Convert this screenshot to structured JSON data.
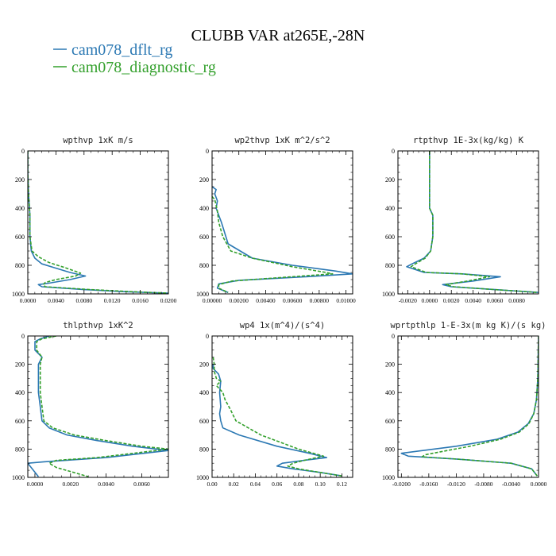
{
  "figure": {
    "title": "CLUBB VAR at265E,-28N",
    "legend": [
      {
        "label": "cam078_dflt_rg",
        "color": "#2b78b3",
        "dash": "solid"
      },
      {
        "label": "cam078_diagnostic_rg",
        "color": "#33a02c",
        "dash": "dashed"
      }
    ]
  },
  "chart_data": [
    {
      "type": "line",
      "title": "wpthvp  1xK m/s",
      "xlim": [
        0,
        0.02
      ],
      "ylim": [
        0,
        1000
      ],
      "y_inverted": true,
      "xticks": [
        0,
        0.004,
        0.008,
        0.012,
        0.016,
        0.02
      ],
      "xtick_labels": [
        "0.0000",
        "0.0040",
        "0.0080",
        "0.0120",
        "0.0160",
        "0.0200"
      ],
      "yticks": [
        0,
        200,
        400,
        600,
        800,
        1000
      ],
      "ytick_labels": [
        "0",
        "200",
        "400",
        "600",
        "800",
        "1000"
      ],
      "series": [
        {
          "name": "cam078_dflt_rg",
          "x": [
            0,
            0,
            0.0001,
            0.0003,
            0.0003,
            0.0005,
            0.001,
            0.002,
            0.004,
            0.006,
            0.0082,
            0.006,
            0.003,
            0.0015,
            0.002,
            0.008,
            0.014,
            0.02
          ],
          "y": [
            0,
            150,
            300,
            450,
            600,
            700,
            750,
            790,
            820,
            850,
            875,
            900,
            925,
            935,
            950,
            970,
            985,
            995
          ]
        },
        {
          "name": "cam078_diagnostic_rg",
          "x": [
            0,
            0,
            0.0001,
            0.0003,
            0.0003,
            0.0006,
            0.0015,
            0.003,
            0.0055,
            0.0075,
            0.0068,
            0.004,
            0.0025,
            0.0022,
            0.0025,
            0.009,
            0.015,
            0.02
          ],
          "y": [
            0,
            150,
            300,
            450,
            600,
            700,
            740,
            780,
            820,
            855,
            875,
            900,
            920,
            935,
            950,
            970,
            985,
            995
          ]
        }
      ]
    },
    {
      "type": "line",
      "title": "wp2thvp  1xK m^2/s^2",
      "xlim": [
        0,
        0.0105
      ],
      "ylim": [
        0,
        1000
      ],
      "y_inverted": true,
      "xticks": [
        0,
        0.002,
        0.004,
        0.006,
        0.008,
        0.01
      ],
      "xtick_labels": [
        "0.00000",
        "0.00200",
        "0.00400",
        "0.00600",
        "0.00800",
        "0.01000"
      ],
      "yticks": [
        0,
        200,
        400,
        600,
        800,
        1000
      ],
      "ytick_labels": [
        "0",
        "200",
        "400",
        "600",
        "800",
        "1000"
      ],
      "series": [
        {
          "name": "cam078_dflt_rg",
          "x": [
            0,
            0.0003,
            0.0002,
            0.0004,
            0.0003,
            0.0005,
            0.0007,
            0.0012,
            0.003,
            0.006,
            0.0092,
            0.0105,
            0.007,
            0.002,
            0.0005,
            0.0004,
            0.0012
          ],
          "y": [
            250,
            270,
            300,
            350,
            400,
            450,
            500,
            650,
            750,
            800,
            840,
            860,
            880,
            905,
            930,
            960,
            990
          ]
        },
        {
          "name": "cam078_diagnostic_rg",
          "x": [
            0,
            0.0002,
            0.0003,
            0.0004,
            0.0005,
            0.0008,
            0.0014,
            0.003,
            0.006,
            0.0085,
            0.009,
            0.006,
            0.0015,
            0.0005,
            0.0005,
            0.0012
          ],
          "y": [
            320,
            340,
            380,
            420,
            500,
            600,
            700,
            750,
            810,
            850,
            860,
            880,
            910,
            935,
            960,
            990
          ]
        }
      ]
    },
    {
      "type": "line",
      "title": "rtpthvp  1E-3x(kg/kg) K",
      "xlim": [
        -0.0029,
        0.01
      ],
      "ylim": [
        0,
        1000
      ],
      "y_inverted": true,
      "xticks": [
        -0.002,
        0,
        0.002,
        0.004,
        0.006,
        0.008
      ],
      "xtick_labels": [
        "-0.0020",
        "0.0000",
        "0.0020",
        "0.0040",
        "0.0060",
        "0.0080"
      ],
      "yticks": [
        0,
        200,
        400,
        600,
        800,
        1000
      ],
      "ytick_labels": [
        "0",
        "200",
        "400",
        "600",
        "800",
        "1000"
      ],
      "series": [
        {
          "name": "cam078_dflt_rg",
          "x": [
            0,
            0,
            0.0003,
            0.0003,
            0.0001,
            -0.0005,
            -0.0016,
            -0.0021,
            -0.0005,
            0.003,
            0.0065,
            0.004,
            0.0012,
            0.002,
            0.006,
            0.01
          ],
          "y": [
            0,
            400,
            450,
            600,
            700,
            750,
            790,
            810,
            850,
            860,
            880,
            910,
            935,
            950,
            970,
            990
          ]
        },
        {
          "name": "cam078_diagnostic_rg",
          "x": [
            0,
            0,
            0.0003,
            0.0003,
            0.0001,
            -0.0004,
            -0.0013,
            -0.0017,
            -0.0003,
            0.003,
            0.0055,
            0.0035,
            0.0015,
            0.0022,
            0.006,
            0.01
          ],
          "y": [
            0,
            400,
            450,
            600,
            700,
            750,
            790,
            810,
            850,
            860,
            880,
            910,
            935,
            950,
            970,
            990
          ]
        }
      ]
    },
    {
      "type": "line",
      "title": "thlpthvp  1xK^2",
      "xlim": [
        -0.0004,
        0.0075
      ],
      "ylim": [
        0,
        1000
      ],
      "y_inverted": true,
      "xticks": [
        0,
        0.002,
        0.004,
        0.006
      ],
      "xtick_labels": [
        "0.0000",
        "0.0020",
        "0.0040",
        "0.0060"
      ],
      "yticks": [
        0,
        200,
        400,
        600,
        800,
        1000
      ],
      "ytick_labels": [
        "0",
        "200",
        "400",
        "600",
        "800",
        "1000"
      ],
      "series": [
        {
          "name": "cam078_dflt_rg",
          "x": [
            0.0008,
            0.0003,
            0.0,
            0.0,
            0.0004,
            0.0002,
            0.0002,
            0.0003,
            0.0004,
            0.0008,
            0.0018,
            0.0035,
            0.0055,
            0.0075,
            0.004,
            0.0005,
            -0.0004,
            0.0002
          ],
          "y": [
            0,
            20,
            40,
            100,
            150,
            200,
            400,
            500,
            600,
            650,
            700,
            740,
            780,
            810,
            860,
            890,
            900,
            995
          ]
        },
        {
          "name": "cam078_diagnostic_rg",
          "x": [
            0.0012,
            0.0004,
            0.0001,
            0.0001,
            0.0004,
            0.0003,
            0.0003,
            0.0004,
            0.0005,
            0.001,
            0.0022,
            0.004,
            0.006,
            0.0075,
            0.0035,
            0.0012,
            0.0008,
            0.0012,
            0.003
          ],
          "y": [
            0,
            20,
            40,
            100,
            150,
            200,
            400,
            500,
            600,
            650,
            700,
            740,
            780,
            800,
            860,
            880,
            900,
            930,
            995
          ]
        }
      ]
    },
    {
      "type": "line",
      "title": "wp4  1x(m^4)/(s^4)",
      "xlim": [
        0,
        0.13
      ],
      "ylim": [
        0,
        1000
      ],
      "y_inverted": true,
      "xticks": [
        0,
        0.02,
        0.04,
        0.06,
        0.08,
        0.1,
        0.12
      ],
      "xtick_labels": [
        "0.00",
        "0.02",
        "0.04",
        "0.06",
        "0.08",
        "0.10",
        "0.12"
      ],
      "yticks": [
        0,
        200,
        400,
        600,
        800,
        1000
      ],
      "ytick_labels": [
        "0",
        "200",
        "400",
        "600",
        "800",
        "1000"
      ],
      "series": [
        {
          "name": "cam078_dflt_rg",
          "x": [
            0.001,
            0.001,
            0.006,
            0.008,
            0.007,
            0.008,
            0.007,
            0.008,
            0.01,
            0.025,
            0.06,
            0.09,
            0.106,
            0.085,
            0.065,
            0.06,
            0.075,
            0.1,
            0.12
          ],
          "y": [
            200,
            230,
            270,
            320,
            400,
            500,
            550,
            600,
            650,
            700,
            780,
            830,
            860,
            880,
            900,
            920,
            940,
            965,
            990
          ]
        },
        {
          "name": "cam078_diagnostic_rg",
          "x": [
            0.001,
            0.002,
            0.002,
            0.004,
            0.008,
            0.004,
            0.01,
            0.012,
            0.017,
            0.022,
            0.045,
            0.08,
            0.103,
            0.085,
            0.075,
            0.07,
            0.08,
            0.1,
            0.12
          ],
          "y": [
            150,
            200,
            250,
            300,
            320,
            350,
            400,
            450,
            520,
            600,
            700,
            800,
            850,
            880,
            900,
            920,
            940,
            965,
            990
          ]
        }
      ]
    },
    {
      "type": "line",
      "title": "wprtpthlp  1-E-3x(m kg K)/(s kg)",
      "xlim": [
        -0.0205,
        0
      ],
      "ylim": [
        0,
        1000
      ],
      "y_inverted": true,
      "xticks": [
        -0.02,
        -0.016,
        -0.012,
        -0.008,
        -0.004,
        0
      ],
      "xtick_labels": [
        "-0.0200",
        "-0.0160",
        "-0.0120",
        "-0.0080",
        "-0.0040",
        "0.0000"
      ],
      "yticks": [
        0,
        200,
        400,
        600,
        800,
        1000
      ],
      "ytick_labels": [
        "0",
        "200",
        "400",
        "600",
        "800",
        "1000"
      ],
      "series": [
        {
          "name": "cam078_dflt_rg",
          "x": [
            0,
            -0.0001,
            -0.0003,
            -0.0007,
            -0.0015,
            -0.003,
            -0.006,
            -0.012,
            -0.02,
            -0.019,
            -0.012,
            -0.004,
            -0.001,
            -0.0002
          ],
          "y": [
            0,
            300,
            450,
            550,
            620,
            680,
            730,
            780,
            830,
            850,
            870,
            900,
            940,
            990
          ]
        },
        {
          "name": "cam078_diagnostic_rg",
          "x": [
            0,
            -0.0001,
            -0.0003,
            -0.0007,
            -0.0014,
            -0.0028,
            -0.0055,
            -0.01,
            -0.0165,
            -0.017,
            -0.012,
            -0.004,
            -0.001,
            -0.0002
          ],
          "y": [
            0,
            300,
            450,
            550,
            620,
            680,
            730,
            780,
            840,
            855,
            870,
            900,
            940,
            990
          ]
        }
      ]
    }
  ]
}
